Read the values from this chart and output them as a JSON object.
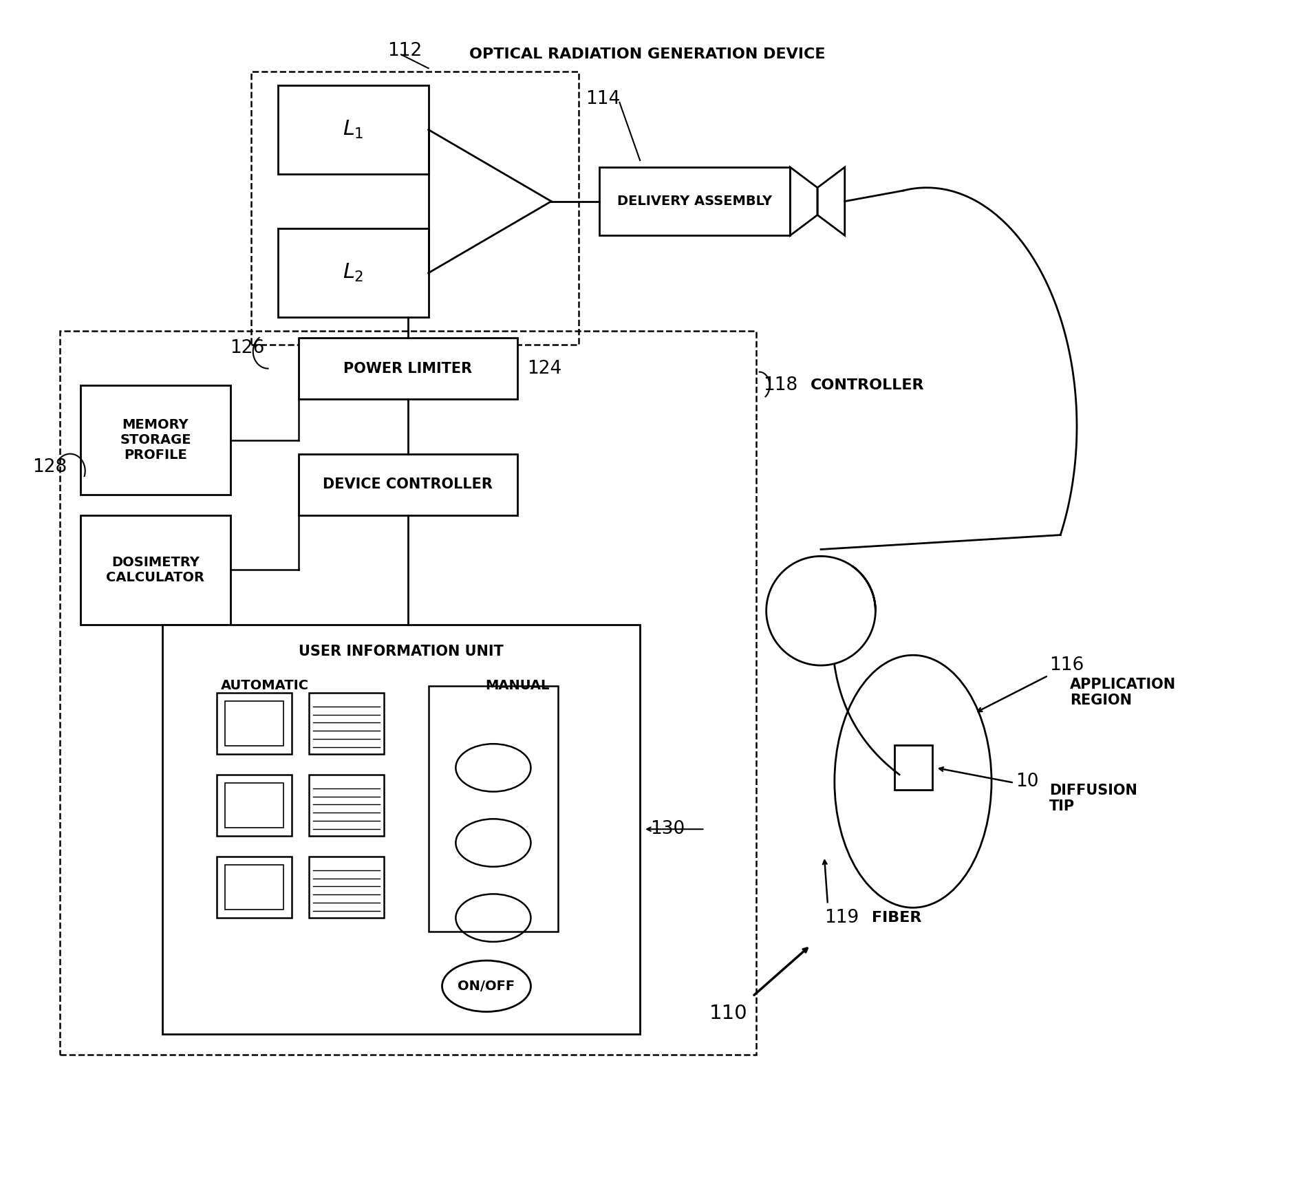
{
  "bg_color": "#ffffff",
  "fig_width": 19.01,
  "fig_height": 17.18,
  "dpi": 100,
  "labels": {
    "112": "112",
    "optical_rad": "OPTICAL RADIATION GENERATION DEVICE",
    "114": "114",
    "delivery": "DELIVERY ASSEMBLY",
    "118": "118",
    "controller": "CONTROLLER",
    "124": "124",
    "power_limiter": "POWER LIMITER",
    "126": "126",
    "memory": "MEMORY\nSTORAGE\nPROFILE",
    "device_ctrl": "DEVICE CONTROLLER",
    "128": "128",
    "dosimetry": "DOSIMETRY\nCALCULATOR",
    "130": "130",
    "user_info": "USER INFORMATION UNIT",
    "automatic": "AUTOMATIC",
    "manual": "MANUAL",
    "on_off": "ON/OFF",
    "L1": "$L_1$",
    "L2": "$L_2$",
    "116": "116",
    "app_region": "APPLICATION\nREGION",
    "10": "10",
    "diff_tip": "DIFFUSION\nTIP",
    "119": "119",
    "fiber": "FIBER",
    "110": "110"
  }
}
